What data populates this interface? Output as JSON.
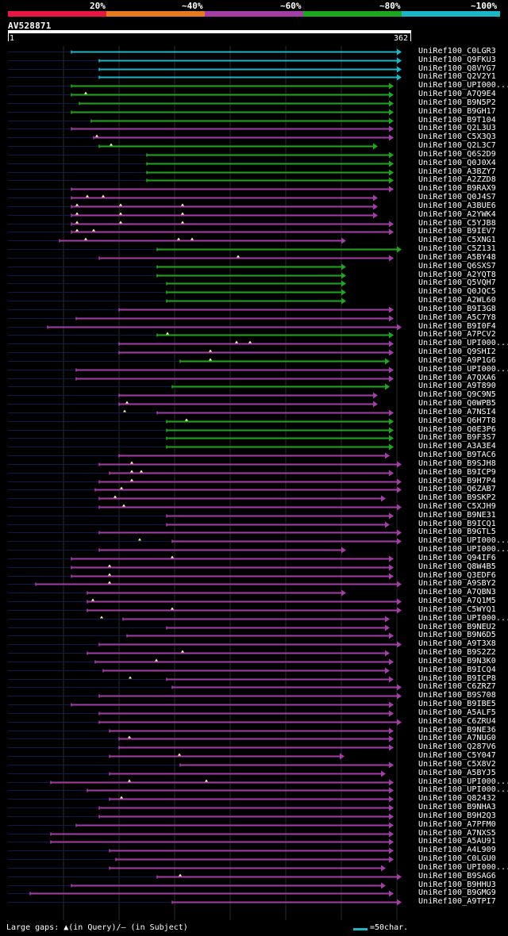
{
  "legend": {
    "labels": [
      "20%",
      "~40%",
      "~60%",
      "~80%",
      "~100%"
    ],
    "colors": [
      "#e8173f",
      "#e87a1e",
      "#a33da8",
      "#1ea71e",
      "#1bb6c8"
    ]
  },
  "query": {
    "name": "AV528871",
    "start": "1",
    "end": "362",
    "length": 362
  },
  "hits": [
    {
      "label": "UniRef100_C0LGR3",
      "start": 90,
      "end": 500,
      "color": "cyan",
      "gaps": []
    },
    {
      "label": "UniRef100_Q9FKU3",
      "start": 125,
      "end": 500,
      "color": "cyan",
      "gaps": []
    },
    {
      "label": "UniRef100_Q8VYG7",
      "start": 125,
      "end": 500,
      "color": "cyan",
      "gaps": []
    },
    {
      "label": "UniRef100_Q2V2Y1",
      "start": 125,
      "end": 500,
      "color": "cyan",
      "gaps": []
    },
    {
      "label": "UniRef100_UPI000...",
      "start": 90,
      "end": 490,
      "color": "green",
      "gaps": []
    },
    {
      "label": "UniRef100_A7Q9E4",
      "start": 90,
      "end": 490,
      "color": "green",
      "gaps": [
        108
      ]
    },
    {
      "label": "UniRef100_B9N5P2",
      "start": 100,
      "end": 490,
      "color": "green",
      "gaps": []
    },
    {
      "label": "UniRef100_B9GH17",
      "start": 90,
      "end": 490,
      "color": "green",
      "gaps": []
    },
    {
      "label": "UniRef100_B9T104",
      "start": 115,
      "end": 490,
      "color": "green",
      "gaps": []
    },
    {
      "label": "UniRef100_Q2L3U3",
      "start": 90,
      "end": 490,
      "color": "magenta",
      "gaps": []
    },
    {
      "label": "UniRef100_C5X3Q3",
      "start": 118,
      "end": 490,
      "color": "magenta",
      "gaps": [
        122
      ]
    },
    {
      "label": "UniRef100_Q2L3C7",
      "start": 125,
      "end": 470,
      "color": "green",
      "gaps": [
        140
      ]
    },
    {
      "label": "UniRef100_Q6S2D9",
      "start": 185,
      "end": 490,
      "color": "green",
      "gaps": []
    },
    {
      "label": "UniRef100_Q0J0X4",
      "start": 185,
      "end": 490,
      "color": "green",
      "gaps": []
    },
    {
      "label": "UniRef100_A3BZY7",
      "start": 185,
      "end": 490,
      "color": "green",
      "gaps": []
    },
    {
      "label": "UniRef100_A2ZZD8",
      "start": 185,
      "end": 490,
      "color": "green",
      "gaps": []
    },
    {
      "label": "UniRef100_B9RAX9",
      "start": 90,
      "end": 490,
      "color": "magenta",
      "gaps": []
    },
    {
      "label": "UniRef100_Q0J4S7",
      "start": 90,
      "end": 470,
      "color": "magenta",
      "gaps": [
        110,
        130
      ]
    },
    {
      "label": "UniRef100_A3BUE6",
      "start": 90,
      "end": 470,
      "color": "magenta",
      "gaps": [
        97,
        152,
        230
      ]
    },
    {
      "label": "UniRef100_A2YWK4",
      "start": 90,
      "end": 470,
      "color": "magenta",
      "gaps": [
        97,
        152,
        230
      ]
    },
    {
      "label": "UniRef100_C5YJB8",
      "start": 90,
      "end": 490,
      "color": "magenta",
      "gaps": [
        97,
        152,
        230
      ]
    },
    {
      "label": "UniRef100_B9IEV7",
      "start": 90,
      "end": 490,
      "color": "magenta",
      "gaps": [
        97,
        118
      ]
    },
    {
      "label": "UniRef100_C5XNG1",
      "start": 75,
      "end": 430,
      "color": "magenta",
      "gaps": [
        108,
        225,
        242
      ]
    },
    {
      "label": "UniRef100_C5Z131",
      "start": 198,
      "end": 500,
      "color": "green",
      "gaps": []
    },
    {
      "label": "UniRef100_A5BY48",
      "start": 125,
      "end": 490,
      "color": "magenta",
      "gaps": [
        300
      ]
    },
    {
      "label": "UniRef100_Q6SXS7",
      "start": 198,
      "end": 430,
      "color": "green",
      "gaps": []
    },
    {
      "label": "UniRef100_A2YQT8",
      "start": 198,
      "end": 430,
      "color": "green",
      "gaps": []
    },
    {
      "label": "UniRef100_Q5VQH7",
      "start": 210,
      "end": 430,
      "color": "green",
      "gaps": []
    },
    {
      "label": "UniRef100_Q0JQC5",
      "start": 210,
      "end": 430,
      "color": "green",
      "gaps": []
    },
    {
      "label": "UniRef100_A2WL60",
      "start": 210,
      "end": 430,
      "color": "green",
      "gaps": []
    },
    {
      "label": "UniRef100_B9I3G8",
      "start": 150,
      "end": 490,
      "color": "magenta",
      "gaps": []
    },
    {
      "label": "UniRef100_A5C7Y8",
      "start": 96,
      "end": 490,
      "color": "magenta",
      "gaps": []
    },
    {
      "label": "UniRef100_B9I0F4",
      "start": 60,
      "end": 500,
      "color": "magenta",
      "gaps": []
    },
    {
      "label": "UniRef100_A7PCV2",
      "start": 198,
      "end": 490,
      "color": "green",
      "gaps": [
        211
      ]
    },
    {
      "label": "UniRef100_UPI000...",
      "start": 150,
      "end": 490,
      "color": "magenta",
      "gaps": [
        298,
        315
      ]
    },
    {
      "label": "UniRef100_Q9SHI2",
      "start": 150,
      "end": 490,
      "color": "magenta",
      "gaps": [
        265
      ]
    },
    {
      "label": "UniRef100_A9P1G6",
      "start": 227,
      "end": 485,
      "color": "green",
      "gaps": [
        265
      ]
    },
    {
      "label": "UniRef100_UPI000...",
      "start": 96,
      "end": 490,
      "color": "magenta",
      "gaps": []
    },
    {
      "label": "UniRef100_A7QXA6",
      "start": 96,
      "end": 490,
      "color": "magenta",
      "gaps": []
    },
    {
      "label": "UniRef100_A9T890",
      "start": 217,
      "end": 485,
      "color": "green",
      "gaps": []
    },
    {
      "label": "UniRef100_Q9C9N5",
      "start": 150,
      "end": 470,
      "color": "magenta",
      "gaps": []
    },
    {
      "label": "UniRef100_Q0WPB5",
      "start": 150,
      "end": 470,
      "color": "magenta",
      "gaps": [
        160
      ]
    },
    {
      "label": "UniRef100_A7NSI4",
      "start": 198,
      "end": 490,
      "color": "magenta",
      "gaps": [
        157
      ]
    },
    {
      "label": "UniRef100_Q6H7T8",
      "start": 210,
      "end": 490,
      "color": "green",
      "gaps": [
        235
      ]
    },
    {
      "label": "UniRef100_Q0E3P6",
      "start": 210,
      "end": 490,
      "color": "green",
      "gaps": []
    },
    {
      "label": "UniRef100_B9F3S7",
      "start": 210,
      "end": 490,
      "color": "green",
      "gaps": []
    },
    {
      "label": "UniRef100_A3A3E4",
      "start": 210,
      "end": 490,
      "color": "green",
      "gaps": []
    },
    {
      "label": "UniRef100_B9TAC6",
      "start": 150,
      "end": 485,
      "color": "magenta",
      "gaps": []
    },
    {
      "label": "UniRef100_B9SJH8",
      "start": 125,
      "end": 500,
      "color": "magenta",
      "gaps": [
        166
      ]
    },
    {
      "label": "UniRef100_B9ICP9",
      "start": 138,
      "end": 490,
      "color": "magenta",
      "gaps": [
        166,
        178
      ]
    },
    {
      "label": "UniRef100_B9H7P4",
      "start": 125,
      "end": 500,
      "color": "magenta",
      "gaps": [
        166
      ]
    },
    {
      "label": "UniRef100_Q6ZAB7",
      "start": 120,
      "end": 500,
      "color": "magenta",
      "gaps": [
        153
      ]
    },
    {
      "label": "UniRef100_B9SKP2",
      "start": 125,
      "end": 480,
      "color": "magenta",
      "gaps": [
        145
      ]
    },
    {
      "label": "UniRef100_C5XJH9",
      "start": 125,
      "end": 500,
      "color": "magenta",
      "gaps": [
        156
      ]
    },
    {
      "label": "UniRef100_B9NE31",
      "start": 210,
      "end": 490,
      "color": "magenta",
      "gaps": []
    },
    {
      "label": "UniRef100_B9ICQ1",
      "start": 210,
      "end": 485,
      "color": "magenta",
      "gaps": []
    },
    {
      "label": "UniRef100_B9GTL5",
      "start": 125,
      "end": 500,
      "color": "magenta",
      "gaps": []
    },
    {
      "label": "UniRef100_UPI000...",
      "start": 217,
      "end": 500,
      "color": "magenta",
      "gaps": [
        176
      ]
    },
    {
      "label": "UniRef100_UPI000...",
      "start": 125,
      "end": 430,
      "color": "magenta",
      "gaps": []
    },
    {
      "label": "UniRef100_Q94IF6",
      "start": 90,
      "end": 490,
      "color": "magenta",
      "gaps": [
        217
      ]
    },
    {
      "label": "UniRef100_Q8W4B5",
      "start": 90,
      "end": 490,
      "color": "magenta",
      "gaps": [
        138
      ]
    },
    {
      "label": "UniRef100_Q3EDF6",
      "start": 90,
      "end": 490,
      "color": "magenta",
      "gaps": [
        138
      ]
    },
    {
      "label": "UniRef100_A9SBY2",
      "start": 45,
      "end": 500,
      "color": "magenta",
      "gaps": [
        138
      ]
    },
    {
      "label": "UniRef100_A7QBN3",
      "start": 110,
      "end": 430,
      "color": "magenta",
      "gaps": []
    },
    {
      "label": "UniRef100_A7Q1M5",
      "start": 110,
      "end": 500,
      "color": "magenta",
      "gaps": [
        117
      ]
    },
    {
      "label": "UniRef100_C5WYQ1",
      "start": 110,
      "end": 500,
      "color": "magenta",
      "gaps": [
        217
      ]
    },
    {
      "label": "UniRef100_UPI000...",
      "start": 155,
      "end": 485,
      "color": "magenta",
      "gaps": [
        128
      ]
    },
    {
      "label": "UniRef100_B9NEU2",
      "start": 210,
      "end": 485,
      "color": "magenta",
      "gaps": []
    },
    {
      "label": "UniRef100_B9N6D5",
      "start": 160,
      "end": 490,
      "color": "magenta",
      "gaps": []
    },
    {
      "label": "UniRef100_A9T3X8",
      "start": 125,
      "end": 500,
      "color": "magenta",
      "gaps": []
    },
    {
      "label": "UniRef100_B9S2Z2",
      "start": 110,
      "end": 485,
      "color": "magenta",
      "gaps": [
        230
      ]
    },
    {
      "label": "UniRef100_B9N3K0",
      "start": 120,
      "end": 490,
      "color": "magenta",
      "gaps": [
        197
      ]
    },
    {
      "label": "UniRef100_B9ICQ4",
      "start": 130,
      "end": 485,
      "color": "magenta",
      "gaps": []
    },
    {
      "label": "UniRef100_B9ICP8",
      "start": 210,
      "end": 490,
      "color": "magenta",
      "gaps": [
        164
      ]
    },
    {
      "label": "UniRef100_C6ZRZ7",
      "start": 217,
      "end": 500,
      "color": "magenta",
      "gaps": []
    },
    {
      "label": "UniRef100_B9S708",
      "start": 125,
      "end": 500,
      "color": "magenta",
      "gaps": []
    },
    {
      "label": "UniRef100_B9IBE5",
      "start": 90,
      "end": 490,
      "color": "magenta",
      "gaps": []
    },
    {
      "label": "UniRef100_A5ALF5",
      "start": 125,
      "end": 490,
      "color": "magenta",
      "gaps": []
    },
    {
      "label": "UniRef100_C6ZRU4",
      "start": 125,
      "end": 500,
      "color": "magenta",
      "gaps": []
    },
    {
      "label": "UniRef100_B9NE36",
      "start": 138,
      "end": 490,
      "color": "magenta",
      "gaps": []
    },
    {
      "label": "UniRef100_A7NUG0",
      "start": 150,
      "end": 490,
      "color": "magenta",
      "gaps": [
        163
      ]
    },
    {
      "label": "UniRef100_Q287V6",
      "start": 150,
      "end": 490,
      "color": "magenta",
      "gaps": []
    },
    {
      "label": "UniRef100_C5Y047",
      "start": 138,
      "end": 428,
      "color": "magenta",
      "gaps": [
        226
      ]
    },
    {
      "label": "UniRef100_C5X8V2",
      "start": 227,
      "end": 490,
      "color": "magenta",
      "gaps": []
    },
    {
      "label": "UniRef100_A5BYJ5",
      "start": 138,
      "end": 480,
      "color": "magenta",
      "gaps": []
    },
    {
      "label": "UniRef100_UPI000...",
      "start": 64,
      "end": 490,
      "color": "magenta",
      "gaps": [
        163,
        260
      ]
    },
    {
      "label": "UniRef100_UPI000...",
      "start": 110,
      "end": 490,
      "color": "magenta",
      "gaps": []
    },
    {
      "label": "UniRef100_Q82432",
      "start": 138,
      "end": 490,
      "color": "magenta",
      "gaps": [
        153
      ]
    },
    {
      "label": "UniRef100_B9NHA3",
      "start": 125,
      "end": 490,
      "color": "magenta",
      "gaps": []
    },
    {
      "label": "UniRef100_B9H2Q3",
      "start": 125,
      "end": 490,
      "color": "magenta",
      "gaps": []
    },
    {
      "label": "UniRef100_A7PFM0",
      "start": 96,
      "end": 490,
      "color": "magenta",
      "gaps": []
    },
    {
      "label": "UniRef100_A7NXS5",
      "start": 64,
      "end": 490,
      "color": "magenta",
      "gaps": []
    },
    {
      "label": "UniRef100_A5AU91",
      "start": 64,
      "end": 490,
      "color": "magenta",
      "gaps": []
    },
    {
      "label": "UniRef100_A4L909",
      "start": 138,
      "end": 490,
      "color": "magenta",
      "gaps": []
    },
    {
      "label": "UniRef100_C0LGU0",
      "start": 146,
      "end": 490,
      "color": "magenta",
      "gaps": []
    },
    {
      "label": "UniRef100_UPI000...",
      "start": 138,
      "end": 480,
      "color": "magenta",
      "gaps": []
    },
    {
      "label": "UniRef100_B9SAG6",
      "start": 198,
      "end": 500,
      "color": "magenta",
      "gaps": [
        227
      ]
    },
    {
      "label": "UniRef100_B9HHU3",
      "start": 90,
      "end": 480,
      "color": "magenta",
      "gaps": []
    },
    {
      "label": "UniRef100_B9GMG9",
      "start": 38,
      "end": 490,
      "color": "magenta",
      "gaps": []
    },
    {
      "label": "UniRef100_A9TPI7",
      "start": 217,
      "end": 500,
      "color": "magenta",
      "gaps": []
    }
  ],
  "footer": {
    "gaps_text": "Large gaps: ▲(in Query)/— (in Subject)",
    "scale_text": "=50char."
  }
}
